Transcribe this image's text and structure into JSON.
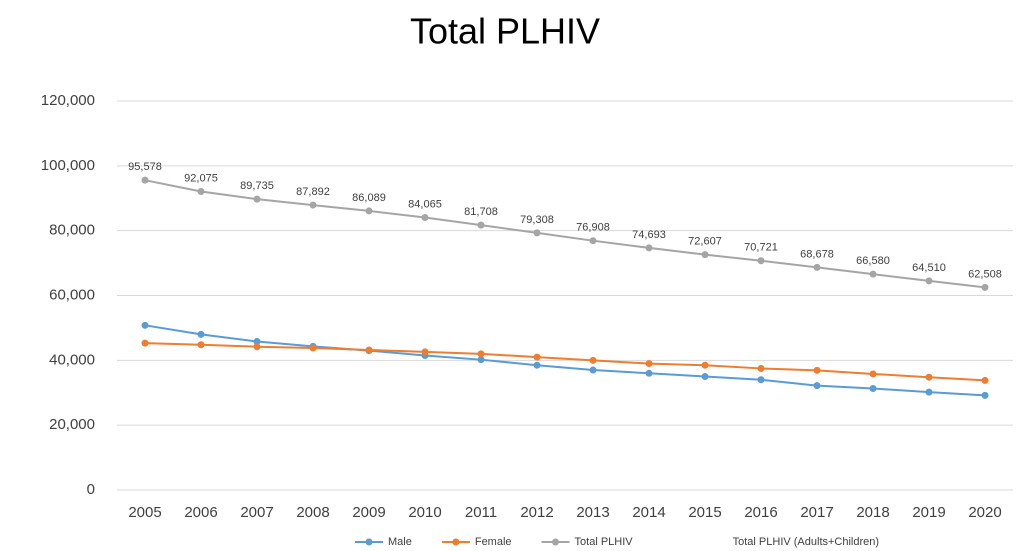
{
  "chart_data": {
    "type": "line",
    "title": "Total PLHIV",
    "categories": [
      "2005",
      "2006",
      "2007",
      "2008",
      "2009",
      "2010",
      "2011",
      "2012",
      "2013",
      "2014",
      "2015",
      "2016",
      "2017",
      "2018",
      "2019",
      "2020"
    ],
    "series": [
      {
        "name": "Male",
        "color": "#5b9bd5",
        "values": [
          50800,
          48000,
          45800,
          44300,
          43000,
          41500,
          40200,
          38500,
          37000,
          36000,
          35000,
          34000,
          32200,
          31300,
          30200,
          29200
        ]
      },
      {
        "name": "Female",
        "color": "#ed7d31",
        "values": [
          45300,
          44800,
          44200,
          43800,
          43200,
          42600,
          42000,
          41000,
          40000,
          39000,
          38500,
          37500,
          36900,
          35800,
          34800,
          33800
        ]
      },
      {
        "name": "Total PLHIV",
        "color": "#a5a5a5",
        "values": [
          95578,
          92075,
          89735,
          87892,
          86089,
          84065,
          81708,
          79308,
          76908,
          74693,
          72607,
          70721,
          68678,
          66580,
          64510,
          62508
        ],
        "value_labels": [
          "95,578",
          "92,075",
          "89,735",
          "87,892",
          "86,089",
          "84,065",
          "81,708",
          "79,308",
          "76,908",
          "74,693",
          "72,607",
          "70,721",
          "68,678",
          "66,580",
          "64,510",
          "62,508"
        ]
      }
    ],
    "legend_note": "Total PLHIV (Adults+Children)",
    "ylim": [
      0,
      120000
    ],
    "yticks": [
      0,
      {
        "value": 20000,
        "label": "20,000"
      },
      {
        "value": 40000,
        "label": "40,000"
      },
      {
        "value": 60000,
        "label": "60,000"
      },
      {
        "value": 80000,
        "label": "80,000"
      },
      {
        "value": 100000,
        "label": "100,000"
      },
      {
        "value": 120000,
        "label": "120,000"
      }
    ],
    "grid": true,
    "legend": "bottom"
  }
}
